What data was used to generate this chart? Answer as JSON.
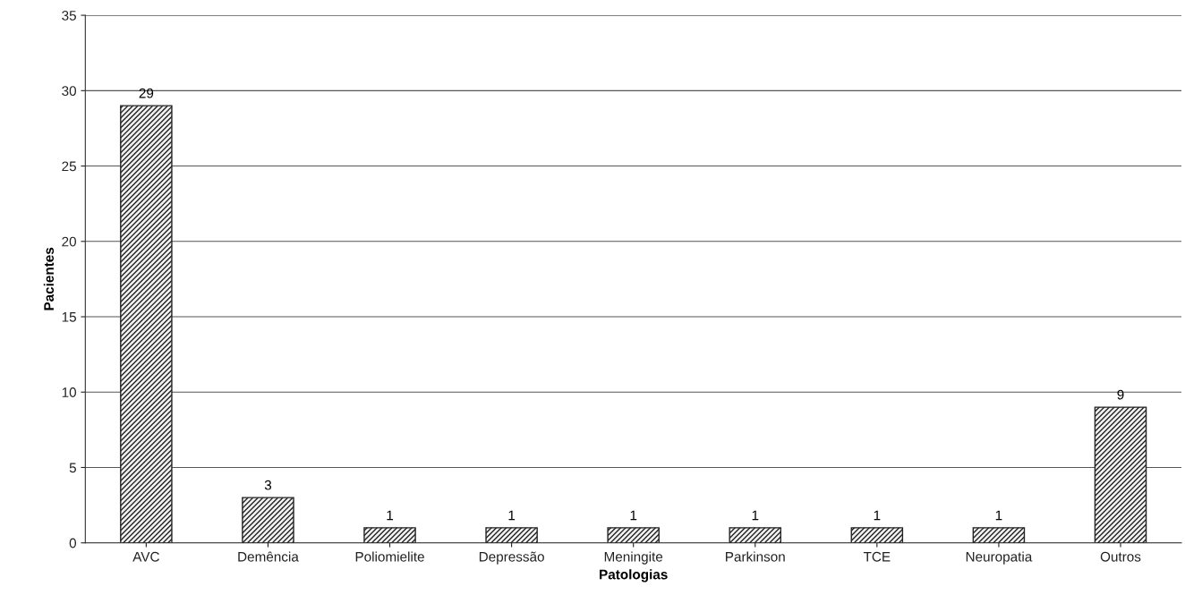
{
  "chart_data": {
    "type": "bar",
    "xlabel": "Patologias",
    "ylabel": "Pacientes",
    "categories": [
      "AVC",
      "Demência",
      "Poliomielite",
      "Depressão",
      "Meningite",
      "Parkinson",
      "TCE",
      "Neuropatia",
      "Outros"
    ],
    "values": [
      29,
      3,
      1,
      1,
      1,
      1,
      1,
      1,
      9
    ],
    "color": "#222222",
    "ylim": [
      0,
      35
    ],
    "yticks": [
      0,
      5,
      10,
      15,
      20,
      25,
      30,
      35
    ],
    "grid": "y",
    "data_labels": true
  }
}
